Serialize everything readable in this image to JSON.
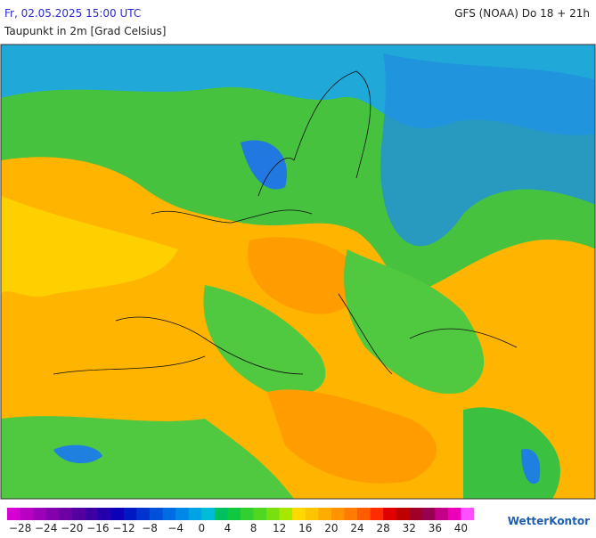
{
  "header": {
    "datetime": "Fr, 02.05.2025 15:00 UTC",
    "model": "GFS (NOAA) Do 18 + 21h",
    "title": "Taupunkt in 2m [Grad Celsius]"
  },
  "legend": {
    "colors": [
      "#d400d4",
      "#b800c4",
      "#9c00b8",
      "#8400ac",
      "#6c00a4",
      "#5400a0",
      "#3c00a4",
      "#2400ac",
      "#0c00b8",
      "#0018c4",
      "#0034d0",
      "#0050dc",
      "#006ce4",
      "#0088e8",
      "#00a4e4",
      "#00bcd8",
      "#00c060",
      "#10c840",
      "#30d030",
      "#50d820",
      "#78e010",
      "#a8e800",
      "#ffd800",
      "#ffc400",
      "#ffac00",
      "#ff9400",
      "#ff7c00",
      "#ff5c00",
      "#ff2c00",
      "#e00000",
      "#c00000",
      "#a00028",
      "#980050",
      "#c40088",
      "#ec00b8",
      "#ff50ff"
    ],
    "labels": [
      "−28",
      "−24",
      "−20",
      "−16",
      "−12",
      "−8",
      "−4",
      "0",
      "4",
      "8",
      "12",
      "16",
      "20",
      "24",
      "28",
      "32",
      "36",
      "40"
    ]
  },
  "logo": "WetterKontor"
}
